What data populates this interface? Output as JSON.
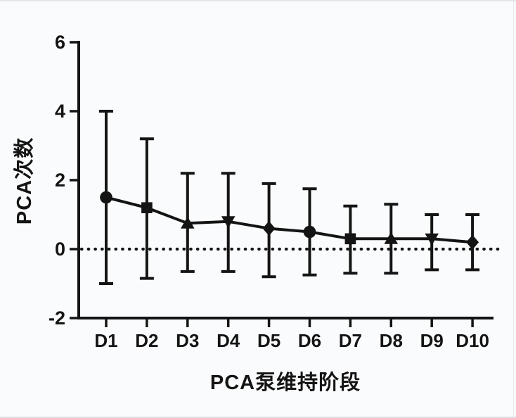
{
  "figure": {
    "description_label": "PCA line chart with SD error bars"
  },
  "chart_data": {
    "type": "line",
    "title": "",
    "xlabel": "PCA泵维持阶段",
    "ylabel": "PCA次数",
    "categories": [
      "D1",
      "D2",
      "D3",
      "D4",
      "D5",
      "D6",
      "D7",
      "D8",
      "D9",
      "D10"
    ],
    "y_ticks": [
      6,
      4,
      2,
      0,
      -2
    ],
    "ylim": [
      -2,
      6
    ],
    "grid": false,
    "legend": "none",
    "zero_line_style": "dotted",
    "series": [
      {
        "means": [
          1.5,
          1.2,
          0.75,
          0.8,
          0.6,
          0.5,
          0.3,
          0.3,
          0.3,
          0.2
        ],
        "upper": [
          4.0,
          3.2,
          2.2,
          2.2,
          1.9,
          1.75,
          1.25,
          1.3,
          1.0,
          1.0
        ],
        "lower": [
          -1.0,
          -0.85,
          -0.65,
          -0.65,
          -0.8,
          -0.75,
          -0.7,
          -0.7,
          -0.6,
          -0.6
        ],
        "markers": [
          "circle",
          "square",
          "triangle-up",
          "triangle-down",
          "diamond",
          "circle",
          "square",
          "triangle-up",
          "triangle-down",
          "diamond"
        ]
      }
    ],
    "colors": {
      "stroke": "#141414",
      "background": "#fafbfc",
      "edge_border": "#dde1e6"
    }
  }
}
